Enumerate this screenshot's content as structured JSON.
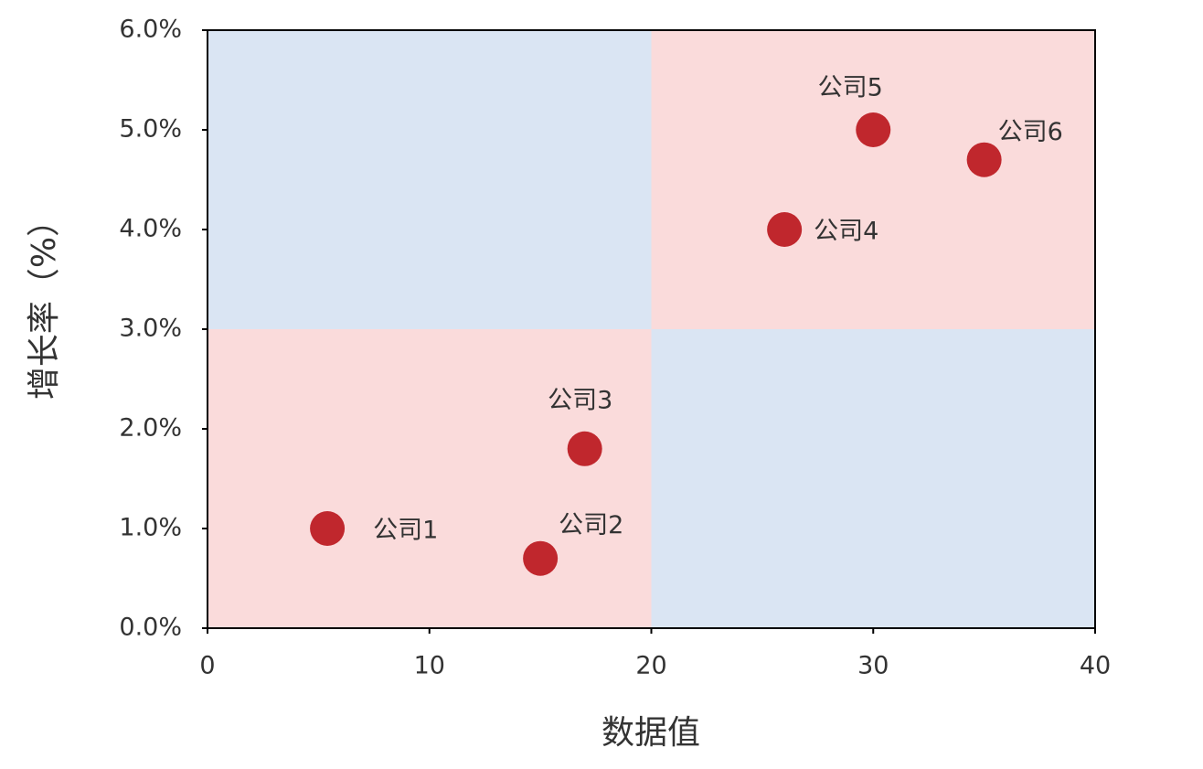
{
  "chart_data": {
    "type": "scatter",
    "x_label": "数据值",
    "y_label": "增长率（%）",
    "x": [
      5.4,
      15,
      17,
      26,
      30,
      35
    ],
    "values": [
      1.0,
      0.7,
      1.8,
      4.0,
      5.0,
      4.7
    ],
    "labels": [
      "公司1",
      "公司2",
      "公司3",
      "公司4",
      "公司5",
      "公司6"
    ],
    "color": "#c0272d",
    "xlim": [
      0,
      40
    ],
    "xticks": [
      0,
      10,
      20,
      30,
      40
    ],
    "ylim": [
      0,
      6
    ],
    "yticks": [
      {
        "value": 0,
        "label": "0.0%"
      },
      {
        "value": 1,
        "label": "1.0%"
      },
      {
        "value": 2,
        "label": "2.0%"
      },
      {
        "value": 3,
        "label": "3.0%"
      },
      {
        "value": 4,
        "label": "4.0%"
      },
      {
        "value": 5,
        "label": "5.0%"
      },
      {
        "value": 6,
        "label": "6.0%"
      }
    ],
    "quadrant_split": [
      20,
      3
    ],
    "quadrant_colors": [
      "#fadbdb",
      "#dae5f3"
    ]
  }
}
